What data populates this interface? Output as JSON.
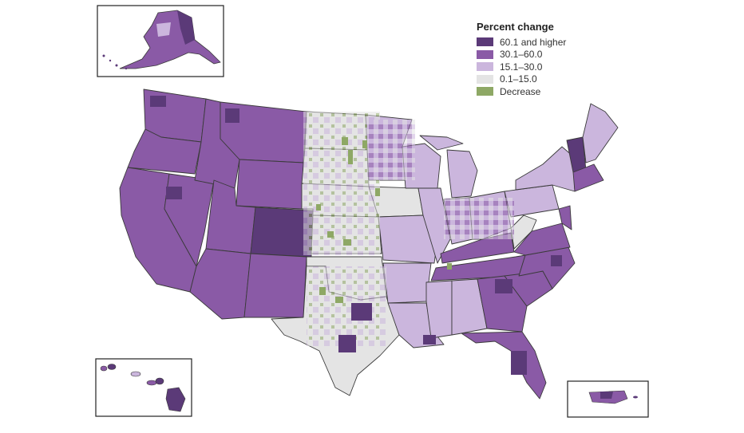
{
  "legend": {
    "title": "Percent change",
    "items": [
      {
        "label": "60.1 and higher",
        "color": "#5b3a78"
      },
      {
        "label": "30.1–60.0",
        "color": "#8a5aa6"
      },
      {
        "label": "15.1–30.0",
        "color": "#cbb6dd"
      },
      {
        "label": "0.1–15.0",
        "color": "#e4e4e4"
      },
      {
        "label": "Decrease",
        "color": "#8ea865"
      }
    ]
  },
  "colors": {
    "boundary": "#3a3a3a",
    "inset_border": "#222222"
  }
}
